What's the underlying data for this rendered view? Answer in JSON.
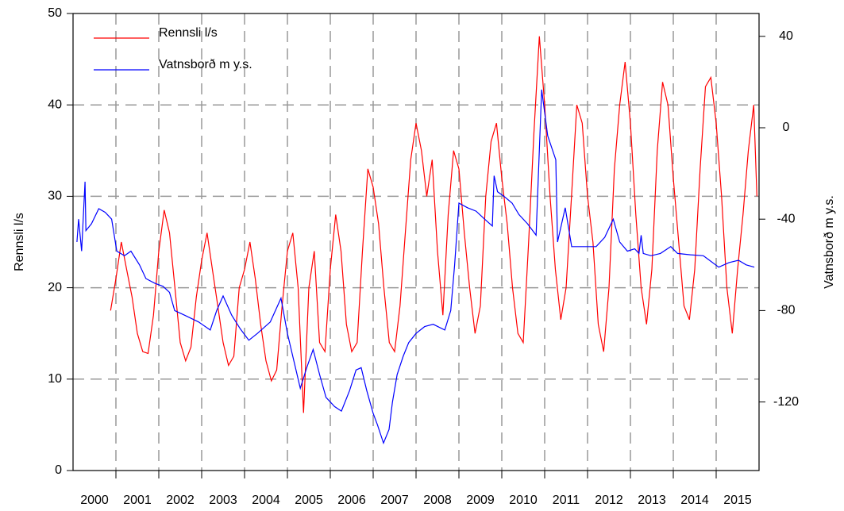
{
  "chart_data": {
    "type": "line",
    "y_label": "Rennsli l/s",
    "y2_label": "Vatnsborð m y.s.",
    "xlim": [
      2000,
      2016
    ],
    "xticks": [
      {
        "value": 2000.5,
        "label": "2000"
      },
      {
        "value": 2001.5,
        "label": "2001"
      },
      {
        "value": 2002.5,
        "label": "2002"
      },
      {
        "value": 2003.5,
        "label": "2003"
      },
      {
        "value": 2004.5,
        "label": "2004"
      },
      {
        "value": 2005.5,
        "label": "2005"
      },
      {
        "value": 2006.5,
        "label": "2006"
      },
      {
        "value": 2007.5,
        "label": "2007"
      },
      {
        "value": 2008.5,
        "label": "2008"
      },
      {
        "value": 2009.5,
        "label": "2009"
      },
      {
        "value": 2010.5,
        "label": "2010"
      },
      {
        "value": 2011.5,
        "label": "2011"
      },
      {
        "value": 2012.5,
        "label": "2012"
      },
      {
        "value": 2013.5,
        "label": "2013"
      },
      {
        "value": 2014.5,
        "label": "2014"
      },
      {
        "value": 2015.5,
        "label": "2015"
      }
    ],
    "xgrid": [
      2001,
      2002,
      2003,
      2004,
      2005,
      2006,
      2007,
      2008,
      2009,
      2010,
      2011,
      2012,
      2013,
      2014,
      2015
    ],
    "ylim": [
      0,
      50
    ],
    "yticks": [
      0,
      10,
      20,
      30,
      40,
      50
    ],
    "ygrid": [
      10,
      20,
      30,
      40
    ],
    "y2lim": [
      -150,
      50
    ],
    "y2ticks": [
      -120,
      -80,
      -40,
      0,
      40
    ],
    "series": [
      {
        "name": "Rennsli l/s",
        "color": "#ff0000",
        "axis": "y",
        "x": [
          2000.875,
          2001,
          2001.125,
          2001.25,
          2001.375,
          2001.5,
          2001.625,
          2001.75,
          2001.875,
          2002,
          2002.125,
          2002.25,
          2002.375,
          2002.5,
          2002.625,
          2002.75,
          2002.875,
          2003,
          2003.125,
          2003.25,
          2003.375,
          2003.5,
          2003.625,
          2003.75,
          2003.875,
          2004,
          2004.125,
          2004.25,
          2004.375,
          2004.5,
          2004.625,
          2004.75,
          2004.875,
          2005,
          2005.125,
          2005.25,
          2005.375,
          2005.5,
          2005.625,
          2005.75,
          2005.875,
          2006,
          2006.125,
          2006.25,
          2006.375,
          2006.5,
          2006.625,
          2006.75,
          2006.875,
          2007,
          2007.125,
          2007.25,
          2007.375,
          2007.5,
          2007.625,
          2007.75,
          2007.875,
          2008,
          2008.125,
          2008.25,
          2008.375,
          2008.5,
          2008.625,
          2008.75,
          2008.875,
          2009,
          2009.125,
          2009.25,
          2009.375,
          2009.5,
          2009.625,
          2009.75,
          2009.875,
          2010,
          2010.125,
          2010.25,
          2010.375,
          2010.5,
          2010.625,
          2010.75,
          2010.875,
          2011,
          2011.125,
          2011.25,
          2011.375,
          2011.5,
          2011.625,
          2011.75,
          2011.875,
          2012,
          2012.125,
          2012.25,
          2012.375,
          2012.5,
          2012.625,
          2012.75,
          2012.875,
          2013,
          2013.125,
          2013.25,
          2013.375,
          2013.5,
          2013.625,
          2013.75,
          2013.875,
          2014,
          2014.125,
          2014.25,
          2014.375,
          2014.5,
          2014.625,
          2014.75,
          2014.875,
          2015,
          2015.125,
          2015.25,
          2015.375,
          2015.5,
          2015.625,
          2015.75,
          2015.875,
          2015.95
        ],
        "values": [
          17.5,
          21,
          25,
          22,
          19,
          15,
          13,
          12.8,
          17,
          24,
          28.5,
          26,
          20,
          14,
          12,
          13.5,
          19,
          23,
          26,
          22,
          18,
          14,
          11.5,
          12.5,
          20,
          22,
          25,
          21,
          16,
          12,
          9.8,
          11,
          18,
          24,
          26,
          20,
          6.3,
          20,
          24,
          14,
          13,
          22,
          28,
          24,
          16,
          13,
          14,
          24,
          33,
          31,
          27,
          20,
          14,
          13,
          18,
          26,
          34,
          38,
          35,
          30,
          34,
          24,
          17,
          28,
          35,
          33,
          26,
          20,
          15,
          18,
          30,
          36,
          38,
          32,
          27,
          20,
          15,
          14,
          25,
          37,
          47.5,
          40,
          30,
          22,
          16.5,
          20,
          30,
          40,
          38,
          30,
          25,
          16,
          13,
          20,
          33,
          40,
          44.7,
          38,
          28,
          20,
          16,
          22,
          35,
          42.5,
          40,
          32,
          25,
          18,
          16.5,
          22,
          33,
          42,
          43,
          38,
          30,
          20,
          15,
          22,
          28,
          35,
          40,
          30
        ]
      },
      {
        "name": "Vatnsborð m y.s.",
        "color": "#0000ff",
        "axis": "y2",
        "x": [
          2000.09,
          2000.13,
          2000.2,
          2000.28,
          2000.3,
          2000.43,
          2000.6,
          2000.75,
          2000.9,
          2001.02,
          2001.2,
          2001.35,
          2001.55,
          2001.7,
          2001.9,
          2002.1,
          2002.25,
          2002.37,
          2002.6,
          2002.93,
          2003.2,
          2003.35,
          2003.5,
          2003.7,
          2003.9,
          2004.1,
          2004.3,
          2004.6,
          2004.85,
          2005.0,
          2005.15,
          2005.3,
          2005.45,
          2005.6,
          2005.75,
          2005.9,
          2006.1,
          2006.26,
          2006.45,
          2006.6,
          2006.72,
          2006.85,
          2007.0,
          2007.1,
          2007.24,
          2007.37,
          2007.45,
          2007.56,
          2007.7,
          2007.83,
          2008.0,
          2008.2,
          2008.4,
          2008.67,
          2008.81,
          2008.9,
          2009.0,
          2009.2,
          2009.4,
          2009.6,
          2009.78,
          2009.82,
          2009.9,
          2010.05,
          2010.24,
          2010.4,
          2010.6,
          2010.8,
          2010.93,
          2011.07,
          2011.26,
          2011.3,
          2011.48,
          2011.63,
          2011.9,
          2012.2,
          2012.4,
          2012.6,
          2012.75,
          2012.93,
          2013.1,
          2013.2,
          2013.25,
          2013.3,
          2013.48,
          2013.7,
          2013.94,
          2014.1,
          2014.4,
          2014.7,
          2015.06,
          2015.3,
          2015.52,
          2015.7,
          2015.89
        ],
        "values": [
          -50,
          -40,
          -54,
          -23.6,
          -45,
          -42,
          -35.4,
          -37,
          -40,
          -54,
          -56,
          -54,
          -60,
          -66,
          -68,
          -69.4,
          -72,
          -80,
          -82,
          -85,
          -88.5,
          -80,
          -73.6,
          -82,
          -88,
          -93,
          -90,
          -85,
          -74.6,
          -90,
          -102,
          -114,
          -105,
          -97,
          -108,
          -118,
          -122,
          -124,
          -115,
          -106,
          -105,
          -115,
          -125,
          -130,
          -138,
          -132,
          -120,
          -108,
          -100,
          -94,
          -90,
          -87,
          -86,
          -88.5,
          -80,
          -60,
          -33,
          -35,
          -36.5,
          -40,
          -43,
          -21,
          -28,
          -30,
          -33,
          -38,
          -42,
          -47,
          16.7,
          -3.5,
          -14,
          -50,
          -35,
          -52,
          -52,
          -52,
          -48,
          -40,
          -50,
          -54,
          -53,
          -55,
          -47,
          -55,
          -56,
          -55,
          -52,
          -55,
          -55.6,
          -56,
          -61,
          -59,
          -58,
          -60,
          -61
        ]
      }
    ]
  }
}
